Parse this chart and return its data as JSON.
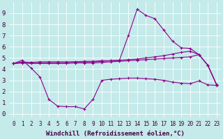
{
  "background_color": "#c4eaea",
  "line_color": "#8b008b",
  "grid_color": "#b0d8d8",
  "xlabel": "Windchill (Refroidissement éolien,°C)",
  "xlabel_fontsize": 6.5,
  "ytick_fontsize": 6.5,
  "xtick_fontsize": 5.5,
  "ylim": [
    -0.3,
    10
  ],
  "xlim": [
    -0.5,
    23.5
  ],
  "xticks": [
    0,
    1,
    2,
    3,
    4,
    5,
    6,
    7,
    8,
    9,
    10,
    11,
    12,
    13,
    14,
    15,
    16,
    17,
    18,
    19,
    20,
    21,
    22,
    23
  ],
  "yticks": [
    0,
    1,
    2,
    3,
    4,
    5,
    6,
    7,
    8,
    9
  ],
  "series": [
    {
      "x": [
        0,
        1,
        2,
        3,
        4,
        5,
        6,
        7,
        8,
        9,
        10,
        11,
        12,
        13,
        14,
        15,
        16,
        17,
        18,
        19,
        20,
        21,
        22,
        23
      ],
      "y": [
        4.5,
        4.8,
        4.1,
        3.3,
        1.3,
        0.7,
        0.65,
        0.65,
        0.45,
        1.3,
        3.0,
        3.1,
        3.15,
        3.2,
        3.2,
        3.15,
        3.1,
        3.0,
        2.85,
        2.75,
        2.7,
        2.95,
        2.6,
        2.55
      ]
    },
    {
      "x": [
        0,
        1,
        2,
        3,
        4,
        5,
        6,
        7,
        8,
        9,
        10,
        11,
        12,
        13,
        14,
        15,
        16,
        17,
        18,
        19,
        20,
        21,
        22,
        23
      ],
      "y": [
        4.5,
        4.65,
        4.6,
        4.6,
        4.6,
        4.6,
        4.6,
        4.65,
        4.65,
        4.65,
        4.7,
        4.75,
        4.8,
        7.0,
        9.35,
        8.8,
        8.5,
        7.5,
        6.5,
        5.9,
        5.85,
        5.3,
        4.35,
        2.6
      ]
    },
    {
      "x": [
        0,
        1,
        2,
        3,
        4,
        5,
        6,
        7,
        8,
        9,
        10,
        11,
        12,
        13,
        14,
        15,
        16,
        17,
        18,
        19,
        20,
        21,
        22,
        23
      ],
      "y": [
        4.5,
        4.6,
        4.6,
        4.65,
        4.65,
        4.65,
        4.65,
        4.65,
        4.7,
        4.7,
        4.75,
        4.75,
        4.8,
        4.85,
        4.9,
        5.0,
        5.1,
        5.2,
        5.35,
        5.5,
        5.6,
        5.3,
        4.35,
        2.6
      ]
    },
    {
      "x": [
        0,
        1,
        2,
        3,
        4,
        5,
        6,
        7,
        8,
        9,
        10,
        11,
        12,
        13,
        14,
        15,
        16,
        17,
        18,
        19,
        20,
        21,
        22,
        23
      ],
      "y": [
        4.5,
        4.55,
        4.5,
        4.5,
        4.5,
        4.5,
        4.5,
        4.55,
        4.55,
        4.55,
        4.6,
        4.65,
        4.7,
        4.75,
        4.8,
        4.85,
        4.9,
        4.95,
        5.0,
        5.05,
        5.1,
        5.3,
        4.35,
        2.6
      ]
    }
  ]
}
